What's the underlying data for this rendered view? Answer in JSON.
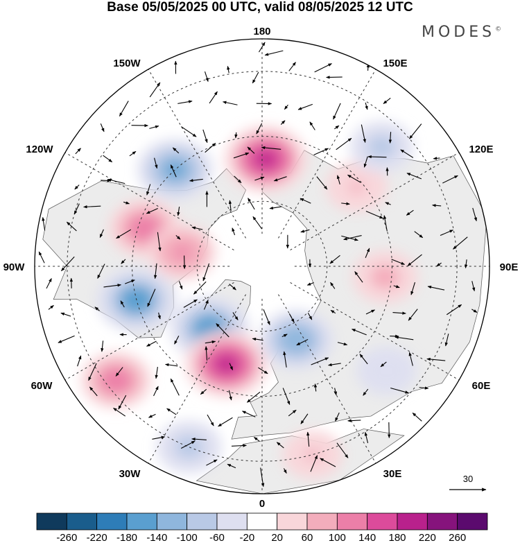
{
  "title": "Base 05/05/2025 00 UTC, valid 08/05/2025 12 UTC",
  "logo": "MODES",
  "logo_mark": "©",
  "longitude_labels": {
    "top": "180",
    "top_left": "150W",
    "top_right": "150E",
    "upper_left": "120W",
    "upper_right": "120E",
    "left": "90W",
    "right": "90E",
    "lower_left": "60W",
    "lower_right": "60E",
    "bottom_left": "30W",
    "bottom_right": "30E",
    "bottom": "0"
  },
  "reference_vector": {
    "label": "30"
  },
  "colorbar": {
    "ticks": [
      "-260",
      "-220",
      "-180",
      "-140",
      "-100",
      "-60",
      "-20",
      "20",
      "60",
      "100",
      "140",
      "180",
      "220",
      "260"
    ],
    "colors": [
      "#0f3a5c",
      "#1a5d8c",
      "#2e7db8",
      "#5a9fd0",
      "#8fb6dd",
      "#b9c9e6",
      "#dedff0",
      "#ffffff",
      "#f9d6da",
      "#f3adbc",
      "#ec7fa8",
      "#dc4b9b",
      "#b9218c",
      "#86137c",
      "#5b0a6e"
    ]
  },
  "chart_data": {
    "type": "heatmap",
    "projection": "north-polar-stereographic",
    "title": "Base 05/05/2025 00 UTC, valid 08/05/2025 12 UTC",
    "longitude_ticks": [
      "180",
      "150E",
      "120E",
      "90E",
      "60E",
      "30E",
      "0",
      "30W",
      "60W",
      "90W",
      "120W",
      "150W"
    ],
    "color_scale": [
      -260,
      -220,
      -180,
      -140,
      -100,
      -60,
      -20,
      20,
      60,
      100,
      140,
      180,
      220,
      260
    ],
    "anomaly_centers": [
      {
        "lon": 178,
        "lat": 57,
        "value": 190
      },
      {
        "lon": -138,
        "lat": 50,
        "value": -150
      },
      {
        "lon": -108,
        "lat": 52,
        "value": 130
      },
      {
        "lon": -100,
        "lat": 65,
        "value": 110
      },
      {
        "lon": -75,
        "lat": 50,
        "value": -170
      },
      {
        "lon": -40,
        "lat": 65,
        "value": -170
      },
      {
        "lon": -52,
        "lat": 33,
        "value": 120
      },
      {
        "lon": -20,
        "lat": 58,
        "value": 190
      },
      {
        "lon": 25,
        "lat": 65,
        "value": -140
      },
      {
        "lon": 85,
        "lat": 52,
        "value": 90
      },
      {
        "lon": 130,
        "lat": 52,
        "value": 70
      },
      {
        "lon": 135,
        "lat": 38,
        "value": -80
      },
      {
        "lon": -22,
        "lat": 30,
        "value": -90
      },
      {
        "lon": 50,
        "lat": 40,
        "value": -60
      },
      {
        "lon": 15,
        "lat": 30,
        "value": 60
      }
    ],
    "vectors": {
      "type": "wind-anomaly",
      "reference_magnitude": 30
    }
  }
}
